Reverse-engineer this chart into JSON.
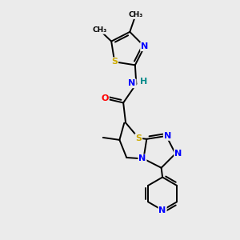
{
  "bg_color": "#ebebeb",
  "atom_colors": {
    "C": "#000000",
    "N": "#0000ff",
    "S": "#ccaa00",
    "O": "#ff0000",
    "H": "#008b8b"
  },
  "bond_color": "#000000",
  "bond_width": 1.4
}
